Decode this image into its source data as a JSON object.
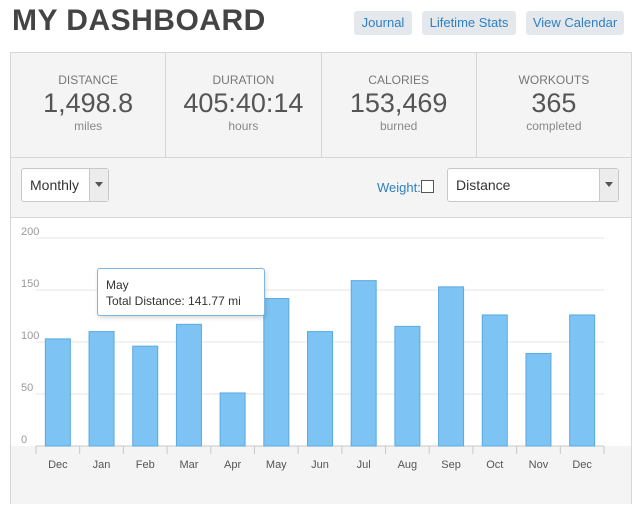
{
  "header": {
    "title": "MY DASHBOARD",
    "buttons": {
      "journal": "Journal",
      "lifetime": "Lifetime Stats",
      "calendar": "View Calendar"
    }
  },
  "stats": [
    {
      "label": "DISTANCE",
      "value": "1,498.8",
      "unit": "miles"
    },
    {
      "label": "DURATION",
      "value": "405:40:14",
      "unit": "hours"
    },
    {
      "label": "CALORIES",
      "value": "153,469",
      "unit": "burned"
    },
    {
      "label": "WORKOUTS",
      "value": "365",
      "unit": "completed"
    }
  ],
  "toolbar": {
    "period": "Monthly",
    "weight_label": "Weight:",
    "weight_checked": false,
    "metric": "Distance"
  },
  "tooltip": {
    "line1": "May",
    "line2": "Total Distance: 141.77 mi"
  },
  "colors": {
    "bar": "#7dc3f3",
    "bar_stroke": "#5aa9e0",
    "accent": "#2f7fc1"
  },
  "chart_data": {
    "type": "bar",
    "categories": [
      "Dec",
      "Jan",
      "Feb",
      "Mar",
      "Apr",
      "May",
      "Jun",
      "Jul",
      "Aug",
      "Sep",
      "Oct",
      "Nov",
      "Dec"
    ],
    "values": [
      103,
      110,
      96,
      117,
      51,
      141.77,
      110,
      159,
      115,
      153,
      126,
      89,
      126
    ],
    "ylim": [
      0,
      200
    ],
    "yticks": [
      0,
      50,
      100,
      150,
      200
    ],
    "grid": true
  }
}
